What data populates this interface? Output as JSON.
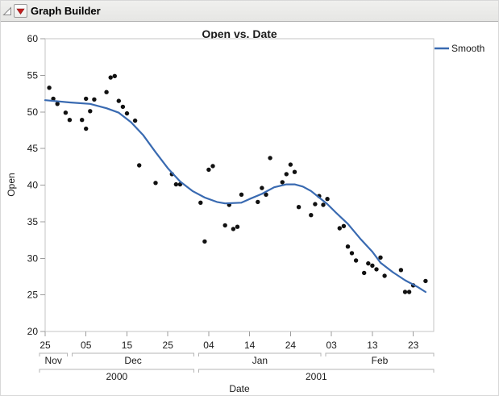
{
  "header": {
    "title": "Graph Builder",
    "icons": {
      "disclosure": "open-disclosure-triangle",
      "menu": "red-triangle-menu"
    }
  },
  "colors": {
    "smooth_line": "#396ab1",
    "marker": "#111111",
    "plot_border": "#c6c6c6",
    "tick": "#9c9c9c",
    "bracket": "#b4b4b4",
    "red_triangle": "#c41e1e",
    "header_bg": "#eaeae8"
  },
  "chart": {
    "title": "Open vs. Date",
    "y_axis": {
      "label": "Open",
      "min": 20,
      "max": 60,
      "tick_interval": 5,
      "ticks": [
        "60",
        "55",
        "50",
        "45",
        "40",
        "35",
        "30",
        "25",
        "20"
      ]
    },
    "x_axis": {
      "label": "Date",
      "day_tick_labels": [
        "25",
        "05",
        "15",
        "25",
        "04",
        "14",
        "24",
        "03",
        "13",
        "23"
      ],
      "month_labels": [
        "Nov",
        "Dec",
        "Jan",
        "Feb"
      ],
      "year_labels": [
        "2000",
        "2001"
      ]
    },
    "legend": [
      {
        "label": "Smooth",
        "color": "#396ab1"
      }
    ]
  },
  "chart_data": {
    "type": "scatter",
    "title": "Open vs. Date",
    "xlabel": "Date",
    "ylabel": "Open",
    "ylim": [
      20,
      60
    ],
    "x_domain": [
      "2000-11-25",
      "2001-02-28"
    ],
    "grid": false,
    "legend_position": "top-right",
    "x_ticks": [
      [
        "2000-11-25",
        "25"
      ],
      [
        "2000-12-05",
        "05"
      ],
      [
        "2000-12-15",
        "15"
      ],
      [
        "2000-12-25",
        "25"
      ],
      [
        "2001-01-04",
        "04"
      ],
      [
        "2001-01-14",
        "14"
      ],
      [
        "2001-01-24",
        "24"
      ],
      [
        "2001-02-03",
        "03"
      ],
      [
        "2001-02-13",
        "13"
      ],
      [
        "2001-02-23",
        "23"
      ]
    ],
    "y_ticks": [
      20,
      25,
      30,
      35,
      40,
      45,
      50,
      55,
      60
    ],
    "month_bands": [
      [
        "Nov",
        "2000-11-25",
        "2000-12-01"
      ],
      [
        "Dec",
        "2000-12-01",
        "2001-01-01"
      ],
      [
        "Jan",
        "2001-01-01",
        "2001-02-01"
      ],
      [
        "Feb",
        "2001-02-01",
        "2001-02-28"
      ]
    ],
    "year_bands": [
      [
        "2000",
        "2000-11-25",
        "2001-01-01"
      ],
      [
        "2001",
        "2001-01-01",
        "2001-02-28"
      ]
    ],
    "series": [
      {
        "name": "Open",
        "type": "scatter",
        "color": "#111111",
        "points": [
          [
            "2000-11-26",
            53.3
          ],
          [
            "2000-11-27",
            51.8
          ],
          [
            "2000-11-28",
            51.1
          ],
          [
            "2000-11-30",
            49.9
          ],
          [
            "2000-12-01",
            48.9
          ],
          [
            "2000-12-04",
            48.9
          ],
          [
            "2000-12-05",
            47.7
          ],
          [
            "2000-12-05",
            51.8
          ],
          [
            "2000-12-06",
            50.1
          ],
          [
            "2000-12-07",
            51.7
          ],
          [
            "2000-12-10",
            52.7
          ],
          [
            "2000-12-11",
            54.7
          ],
          [
            "2000-12-12",
            54.9
          ],
          [
            "2000-12-13",
            51.5
          ],
          [
            "2000-12-14",
            50.7
          ],
          [
            "2000-12-15",
            49.8
          ],
          [
            "2000-12-17",
            48.8
          ],
          [
            "2000-12-18",
            42.7
          ],
          [
            "2000-12-22",
            40.3
          ],
          [
            "2000-12-26",
            41.5
          ],
          [
            "2000-12-27",
            40.1
          ],
          [
            "2000-12-28",
            40.1
          ],
          [
            "2001-01-02",
            37.6
          ],
          [
            "2001-01-03",
            32.3
          ],
          [
            "2001-01-04",
            42.1
          ],
          [
            "2001-01-05",
            42.6
          ],
          [
            "2001-01-08",
            34.5
          ],
          [
            "2001-01-09",
            37.3
          ],
          [
            "2001-01-10",
            34.0
          ],
          [
            "2001-01-11",
            34.3
          ],
          [
            "2001-01-12",
            38.7
          ],
          [
            "2001-01-16",
            37.7
          ],
          [
            "2001-01-17",
            39.6
          ],
          [
            "2001-01-18",
            38.7
          ],
          [
            "2001-01-19",
            43.7
          ],
          [
            "2001-01-22",
            40.4
          ],
          [
            "2001-01-23",
            41.5
          ],
          [
            "2001-01-24",
            42.8
          ],
          [
            "2001-01-25",
            41.8
          ],
          [
            "2001-01-26",
            37.0
          ],
          [
            "2001-01-29",
            35.9
          ],
          [
            "2001-01-30",
            37.4
          ],
          [
            "2001-01-31",
            38.5
          ],
          [
            "2001-02-01",
            37.3
          ],
          [
            "2001-02-02",
            38.1
          ],
          [
            "2001-02-05",
            34.1
          ],
          [
            "2001-02-06",
            34.4
          ],
          [
            "2001-02-07",
            31.6
          ],
          [
            "2001-02-08",
            30.7
          ],
          [
            "2001-02-09",
            29.7
          ],
          [
            "2001-02-11",
            28.0
          ],
          [
            "2001-02-12",
            29.3
          ],
          [
            "2001-02-13",
            29.0
          ],
          [
            "2001-02-14",
            28.5
          ],
          [
            "2001-02-15",
            30.1
          ],
          [
            "2001-02-16",
            27.6
          ],
          [
            "2001-02-20",
            28.4
          ],
          [
            "2001-02-21",
            25.4
          ],
          [
            "2001-02-22",
            25.4
          ],
          [
            "2001-02-23",
            26.3
          ],
          [
            "2001-02-26",
            26.9
          ]
        ]
      },
      {
        "name": "Smooth",
        "type": "line",
        "color": "#396ab1",
        "points": [
          [
            "2000-11-25",
            51.6
          ],
          [
            "2000-12-01",
            51.3
          ],
          [
            "2000-12-06",
            51.1
          ],
          [
            "2000-12-10",
            50.5
          ],
          [
            "2000-12-13",
            49.9
          ],
          [
            "2000-12-16",
            48.6
          ],
          [
            "2000-12-19",
            46.8
          ],
          [
            "2000-12-22",
            44.5
          ],
          [
            "2000-12-25",
            42.3
          ],
          [
            "2000-12-28",
            40.5
          ],
          [
            "2000-12-31",
            39.2
          ],
          [
            "2001-01-03",
            38.3
          ],
          [
            "2001-01-06",
            37.7
          ],
          [
            "2001-01-08",
            37.5
          ],
          [
            "2001-01-12",
            37.6
          ],
          [
            "2001-01-14",
            38.1
          ],
          [
            "2001-01-17",
            38.8
          ],
          [
            "2001-01-20",
            39.7
          ],
          [
            "2001-01-23",
            40.1
          ],
          [
            "2001-01-25",
            40.1
          ],
          [
            "2001-01-27",
            39.8
          ],
          [
            "2001-01-29",
            39.2
          ],
          [
            "2001-01-31",
            38.3
          ],
          [
            "2001-02-02",
            37.4
          ],
          [
            "2001-02-04",
            36.3
          ],
          [
            "2001-02-07",
            34.7
          ],
          [
            "2001-02-10",
            32.7
          ],
          [
            "2001-02-13",
            30.9
          ],
          [
            "2001-02-15",
            29.4
          ],
          [
            "2001-02-18",
            28.1
          ],
          [
            "2001-02-21",
            27.0
          ],
          [
            "2001-02-24",
            26.1
          ],
          [
            "2001-02-26",
            25.4
          ]
        ]
      }
    ]
  }
}
